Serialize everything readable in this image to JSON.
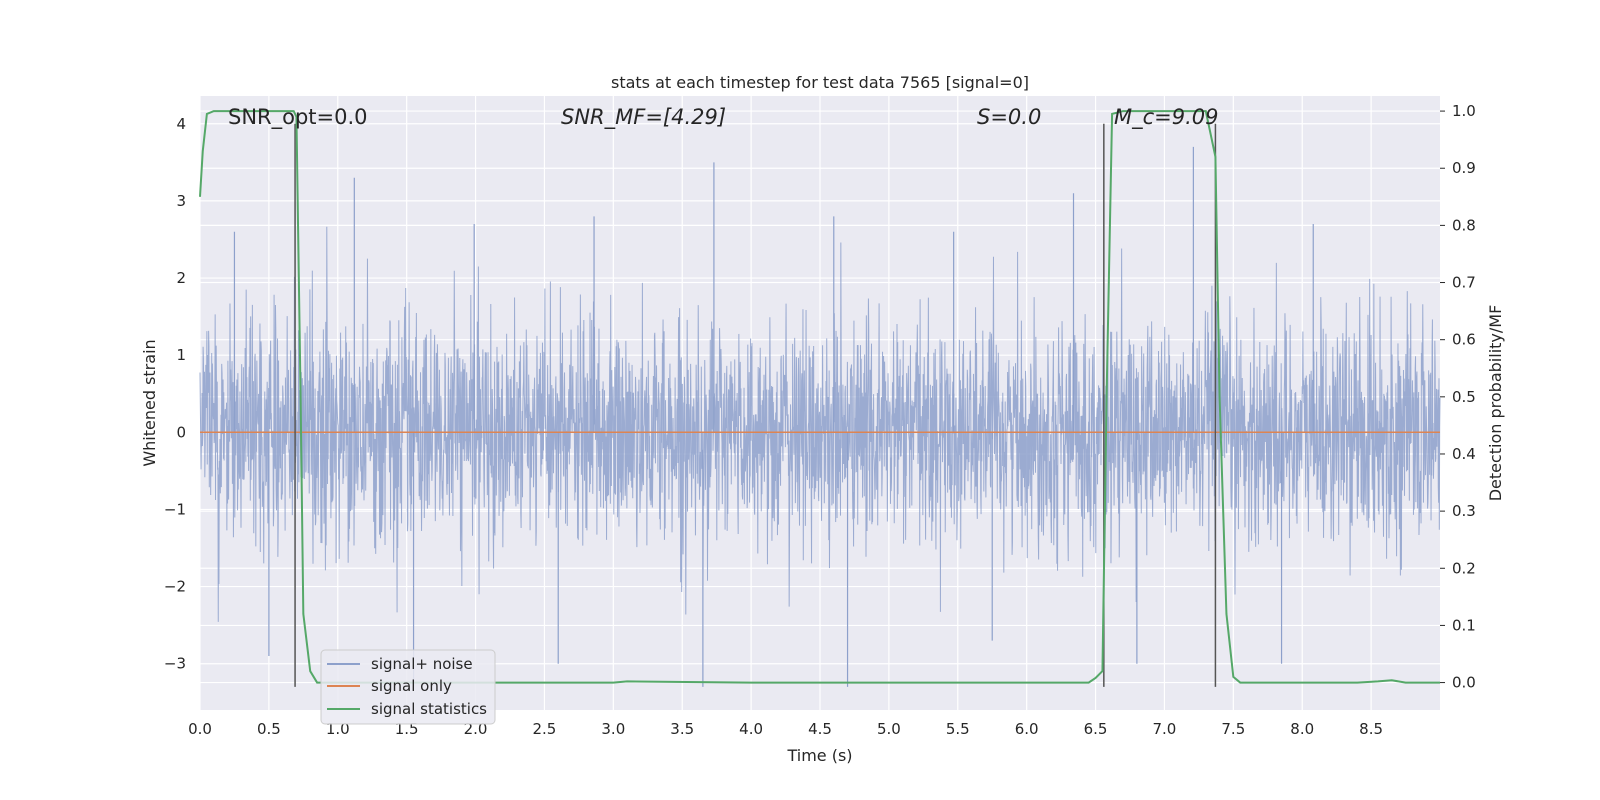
{
  "chart_data": {
    "type": "line",
    "title": "stats at each timestep for test data 7565 [signal=0]",
    "xlabel": "Time (s)",
    "ylabel_left": "Whitened strain",
    "ylabel_right": "Detection probability/MF",
    "xlim": [
      0.0,
      9.0
    ],
    "ylim_left": [
      -3.6,
      4.36
    ],
    "ylim_right": [
      -0.048,
      1.0264
    ],
    "xticks": [
      "0.0",
      "0.5",
      "1.0",
      "1.5",
      "2.0",
      "2.5",
      "3.0",
      "3.5",
      "4.0",
      "4.5",
      "5.0",
      "5.5",
      "6.0",
      "6.5",
      "7.0",
      "7.5",
      "8.0",
      "8.5"
    ],
    "yticks_left": [
      "−3",
      "−2",
      "−1",
      "0",
      "1",
      "2",
      "3",
      "4"
    ],
    "yticks_right": [
      "0.0",
      "0.1",
      "0.2",
      "0.3",
      "0.4",
      "0.5",
      "0.6",
      "0.7",
      "0.8",
      "0.9",
      "1.0"
    ],
    "grid": true,
    "legend_position": "lower-left",
    "annotations": [
      {
        "text": "SNR_opt=0.0",
        "x": 0.2
      },
      {
        "text": "SNR_MF=[4.29]",
        "x": 2.6
      },
      {
        "text": "S=0.0",
        "x": 5.6
      },
      {
        "text": "M_c=9.09",
        "x": 6.6
      }
    ],
    "vertical_markers": [
      0.69,
      6.56,
      7.37
    ],
    "series": [
      {
        "name": "signal+ noise",
        "color": "#8da0cb",
        "axis": "left",
        "envelope": {
          "noise_sigma": 0.7,
          "upper_peak_examples": [
            2.6,
            3.3,
            2.7,
            2.8,
            3.5,
            2.8,
            2.6,
            3.1,
            3.7,
            2.7
          ],
          "lower_peak_examples": [
            -2.9,
            -3.3,
            -3.0,
            -3.3,
            -3.3,
            -2.7,
            -3.0,
            -3.0
          ]
        }
      },
      {
        "name": "signal only",
        "color": "#dd8452",
        "axis": "left",
        "x": [
          0.0,
          9.0
        ],
        "y": [
          0.0,
          0.0
        ]
      },
      {
        "name": "signal statistics",
        "color": "#55a868",
        "axis": "right",
        "x": [
          0.0,
          0.02,
          0.05,
          0.1,
          0.3,
          0.5,
          0.68,
          0.7,
          0.73,
          0.75,
          0.8,
          0.85,
          1.0,
          2.0,
          2.5,
          3.0,
          3.1,
          4.0,
          5.0,
          6.0,
          6.45,
          6.5,
          6.55,
          6.58,
          6.62,
          6.7,
          7.0,
          7.2,
          7.3,
          7.37,
          7.4,
          7.45,
          7.5,
          7.55,
          7.6,
          8.0,
          8.4,
          8.55,
          8.65,
          8.75,
          9.0
        ],
        "y": [
          0.85,
          0.93,
          0.995,
          1.0,
          1.0,
          1.0,
          1.0,
          0.99,
          0.5,
          0.12,
          0.02,
          0.0,
          0.0,
          0.0,
          0.0,
          0.0,
          0.002,
          0.0,
          0.0,
          0.0,
          0.0,
          0.008,
          0.02,
          0.5,
          0.995,
          1.0,
          1.0,
          1.0,
          1.0,
          0.92,
          0.5,
          0.12,
          0.01,
          0.0,
          0.0,
          0.0,
          0.0,
          0.002,
          0.004,
          0.0,
          0.0
        ]
      }
    ]
  }
}
